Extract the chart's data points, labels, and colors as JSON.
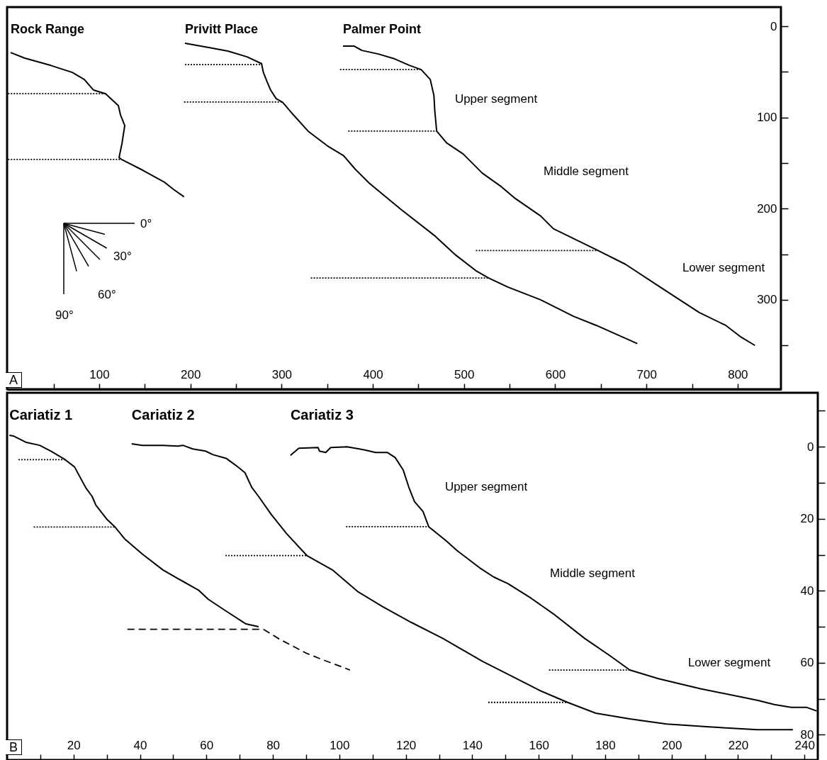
{
  "chart_data": [
    {
      "type": "line",
      "line_style": "solid",
      "xlim": [
        -1,
        847.5
      ],
      "ylim": [
        398,
        -21
      ],
      "xticks": [
        {
          "value": 50,
          "label": null
        },
        100,
        {
          "value": 150,
          "label": null
        },
        200,
        {
          "value": 250,
          "label": null
        },
        300,
        {
          "value": 350,
          "label": null
        },
        400,
        {
          "value": 450,
          "label": null
        },
        500,
        {
          "value": 550,
          "label": null
        },
        600,
        {
          "value": 650,
          "label": null
        },
        700,
        {
          "value": 750,
          "label": null
        },
        800
      ],
      "yticks": [
        0,
        {
          "value": 50,
          "label": null
        },
        100,
        {
          "value": 150,
          "label": null
        },
        200,
        {
          "value": 250,
          "label": null
        },
        300,
        {
          "value": 350,
          "label": null
        }
      ],
      "series": [
        {
          "name": "Rock Range",
          "color": "#000000",
          "x": [
            2.9,
            18.4,
            47,
            70.5,
            83.7,
            93.8,
            107,
            121,
            123.3,
            128,
            125,
            121.8,
            124.9,
            148,
            171.5,
            181.6,
            193
          ],
          "values": [
            28.8,
            35,
            43,
            50.6,
            58.4,
            70,
            74,
            87,
            97,
            109,
            128.4,
            144,
            146.3,
            158,
            171,
            179,
            187
          ]
        },
        {
          "name": "Privitt Place",
          "color": "#000000",
          "x": [
            194,
            220,
            241,
            262,
            278,
            280,
            284,
            288,
            294,
            301,
            311,
            329,
            350,
            368,
            381,
            396,
            431,
            467,
            491,
            513,
            527,
            548,
            584,
            620,
            645,
            690
          ],
          "values": [
            18.7,
            23.3,
            27.2,
            33.5,
            41,
            50.6,
            60.7,
            70,
            79.4,
            83.3,
            95,
            115,
            131,
            142,
            157,
            172,
            201,
            229,
            251,
            268,
            276,
            286,
            300,
            318,
            328,
            348
          ]
        },
        {
          "name": "Palmer Point",
          "color": "#000000",
          "x": [
            367.3,
            379.7,
            388,
            406,
            424,
            440,
            453,
            463,
            467,
            468,
            470,
            481,
            499,
            520,
            541,
            555,
            584,
            598,
            645,
            677,
            715,
            758,
            787,
            804,
            819
          ],
          "values": [
            21.8,
            21.8,
            26.5,
            30.4,
            35.8,
            42.8,
            47.5,
            58.4,
            76,
            93,
            115,
            128,
            140,
            161,
            176,
            188,
            208,
            222,
            245,
            261,
            286,
            314,
            328,
            341,
            350
          ]
        },
        {
          "color": "#000000",
          "line_style": "dotted",
          "x": [
            0,
            107
          ],
          "values": [
            74,
            74
          ]
        },
        {
          "color": "#000000",
          "line_style": "dotted",
          "x": [
            0,
            124
          ],
          "values": [
            146,
            146
          ]
        },
        {
          "color": "#000000",
          "line_style": "dotted",
          "x": [
            194,
            278
          ],
          "values": [
            42,
            42
          ]
        },
        {
          "color": "#000000",
          "line_style": "dotted",
          "x": [
            193,
            301
          ],
          "values": [
            83,
            83
          ]
        },
        {
          "color": "#000000",
          "line_style": "dotted",
          "x": [
            332,
            527
          ],
          "values": [
            276,
            276
          ]
        },
        {
          "color": "#000000",
          "line_style": "dotted",
          "x": [
            364,
            453
          ],
          "values": [
            47.5,
            47.5
          ]
        },
        {
          "color": "#000000",
          "line_style": "dotted",
          "x": [
            373,
            470
          ],
          "values": [
            115,
            115
          ]
        },
        {
          "color": "#000000",
          "line_style": "dotted",
          "x": [
            513,
            645
          ],
          "values": [
            246,
            246
          ]
        }
      ],
      "annotations": [
        "A",
        "0°",
        "30°",
        "60°",
        "90°",
        "Upper segment",
        "Middle segment",
        "Lower segment"
      ]
    },
    {
      "type": "line",
      "line_style": "solid",
      "xlim": [
        0,
        244
      ],
      "ylim": [
        87,
        -15
      ],
      "xticks": [
        {
          "value": 10,
          "label": null
        },
        20,
        {
          "value": 30,
          "label": null
        },
        40,
        {
          "value": 50,
          "label": null
        },
        60,
        {
          "value": 70,
          "label": null
        },
        80,
        {
          "value": 90,
          "label": null
        },
        100,
        {
          "value": 110,
          "label": null
        },
        120,
        {
          "value": 130,
          "label": null
        },
        140,
        {
          "value": 150,
          "label": null
        },
        160,
        {
          "value": 170,
          "label": null
        },
        180,
        {
          "value": 190,
          "label": null
        },
        200,
        {
          "value": 210,
          "label": null
        },
        220,
        {
          "value": 230,
          "label": null
        },
        240
      ],
      "yticks": [
        {
          "value": -10,
          "label": null
        },
        0,
        {
          "value": 10,
          "label": null
        },
        20,
        {
          "value": 30,
          "label": null
        },
        40,
        {
          "value": 50,
          "label": null
        },
        60,
        {
          "value": 70,
          "label": null
        },
        80
      ],
      "series": [
        {
          "name": "Cariatiz 1",
          "color": "#000000",
          "x": [
            0.7,
            1.9,
            5.8,
            9.8,
            13.2,
            17.5,
            20.3,
            22.4,
            23.7,
            25.6,
            26.7,
            30.1,
            32.4,
            35.4,
            40.7,
            46.9,
            51.4,
            57.6,
            60.6,
            66.5,
            71.9,
            75.7
          ],
          "values": [
            -3.2,
            -3,
            -1.2,
            -0.4,
            1.2,
            3.6,
            5.6,
            9.2,
            11.4,
            13.8,
            16.2,
            20.2,
            22.2,
            25.6,
            29.8,
            34.2,
            36.6,
            39.8,
            42.4,
            46,
            49.2,
            50
          ]
        },
        {
          "name": "Cariatiz 2",
          "color": "#000000",
          "x": [
            37.5,
            40.7,
            46.9,
            51.4,
            52.9,
            55.9,
            59.7,
            62,
            65.9,
            68.9,
            71.6,
            73.6,
            75.7,
            79.5,
            84.2,
            90.2,
            97.9,
            105.5,
            113,
            121.7,
            131.1,
            143.1,
            153.3,
            160.1,
            168.7,
            177.2,
            187.4,
            198.5,
            211.3,
            225.8,
            236.5
          ],
          "values": [
            -0.8,
            -0.4,
            -0.4,
            -0.2,
            -0.4,
            0.6,
            1.2,
            2.2,
            3.2,
            5.2,
            7.2,
            11.2,
            13.8,
            18.8,
            24.2,
            30.2,
            34.2,
            40.2,
            44.4,
            48.8,
            53.2,
            59.6,
            64.4,
            67.6,
            71,
            74,
            75.6,
            77,
            77.8,
            78.6,
            78.6
          ]
        },
        {
          "name": "Cariatiz 3",
          "color": "#000000",
          "x": [
            85.3,
            87.8,
            93.6,
            94,
            95.9,
            97.4,
            102.3,
            107.7,
            110.9,
            114.5,
            116.8,
            119.2,
            120.9,
            122.6,
            125.2,
            126.9,
            132,
            135.4,
            142.2,
            146.5,
            150.7,
            157.6,
            164.4,
            173.8,
            181.4,
            187.4,
            196,
            208.7,
            225.8,
            230.9,
            236,
            240.7,
            243.7
          ],
          "values": [
            2.4,
            0.4,
            0.2,
            1.2,
            1.6,
            0.2,
            0,
            0.9,
            1.6,
            1.6,
            3,
            6.4,
            11.2,
            15.2,
            18,
            22.2,
            26,
            28.8,
            33.6,
            36.2,
            38,
            42,
            46.4,
            53.2,
            58,
            62,
            64.4,
            67.2,
            70.4,
            71.6,
            72.4,
            72.4,
            73.4
          ]
        },
        {
          "color": "#000000",
          "line_style": "dotted",
          "x": [
            3.4,
            17.5
          ],
          "values": [
            3.6,
            3.6
          ]
        },
        {
          "color": "#000000",
          "line_style": "dotted",
          "x": [
            8,
            32.4
          ],
          "values": [
            22.3,
            22.3
          ]
        },
        {
          "color": "#000000",
          "line_style": "dashed",
          "x": [
            36.2,
            77.2
          ],
          "values": [
            50.7,
            50.7
          ]
        },
        {
          "color": "#000000",
          "line_style": "dashed",
          "x": [
            77.2,
            81.9,
            90.2,
            94,
            103.2
          ],
          "values": [
            50.7,
            53.4,
            57.4,
            58.8,
            62
          ]
        },
        {
          "color": "#000000",
          "line_style": "dotted",
          "x": [
            65.7,
            90.2
          ],
          "values": [
            30.2,
            30.2
          ]
        },
        {
          "color": "#000000",
          "line_style": "dotted",
          "x": [
            144.8,
            168.7
          ],
          "values": [
            71,
            71
          ]
        },
        {
          "color": "#000000",
          "line_style": "dotted",
          "x": [
            102,
            126.9
          ],
          "values": [
            22.2,
            22.2
          ]
        },
        {
          "color": "#000000",
          "line_style": "dotted",
          "x": [
            163.1,
            187.4
          ],
          "values": [
            62,
            62
          ]
        }
      ],
      "annotations": [
        "B",
        "Upper segment",
        "Middle segment",
        "Lower segment"
      ]
    }
  ]
}
